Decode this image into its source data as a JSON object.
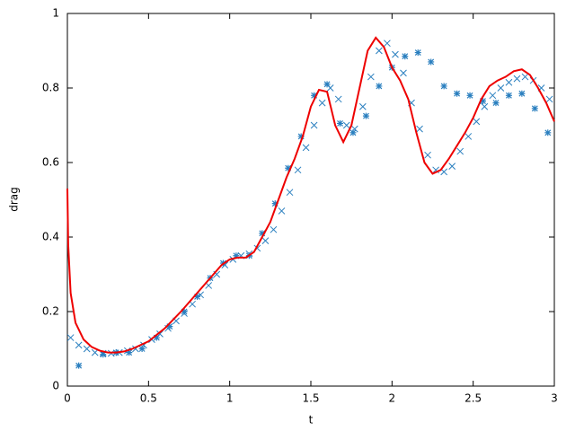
{
  "chart_data": {
    "type": "line",
    "xlabel": "t",
    "ylabel": "drag",
    "xlim": [
      0,
      3
    ],
    "ylim": [
      0,
      1
    ],
    "xticks": [
      0,
      0.5,
      1,
      1.5,
      2,
      2.5,
      3
    ],
    "yticks": [
      0,
      0.2,
      0.4,
      0.6,
      0.8,
      1
    ],
    "series": [
      {
        "marker": "x",
        "color": "#2a7fbf",
        "x": [
          0.02,
          0.07,
          0.12,
          0.17,
          0.22,
          0.27,
          0.32,
          0.37,
          0.42,
          0.47,
          0.52,
          0.57,
          0.62,
          0.67,
          0.72,
          0.77,
          0.82,
          0.87,
          0.92,
          0.97,
          1.02,
          1.07,
          1.12,
          1.17,
          1.22,
          1.27,
          1.32,
          1.37,
          1.42,
          1.47,
          1.52,
          1.57,
          1.62,
          1.67,
          1.72,
          1.77,
          1.82,
          1.87,
          1.92,
          1.97,
          2.02,
          2.07,
          2.12,
          2.17,
          2.22,
          2.27,
          2.32,
          2.37,
          2.42,
          2.47,
          2.52,
          2.57,
          2.62,
          2.67,
          2.72,
          2.77,
          2.82,
          2.87,
          2.92,
          2.97
        ],
        "values": [
          0.13,
          0.11,
          0.1,
          0.09,
          0.088,
          0.088,
          0.09,
          0.095,
          0.1,
          0.11,
          0.125,
          0.14,
          0.155,
          0.175,
          0.195,
          0.22,
          0.245,
          0.27,
          0.3,
          0.325,
          0.34,
          0.35,
          0.355,
          0.37,
          0.39,
          0.42,
          0.47,
          0.52,
          0.58,
          0.64,
          0.7,
          0.76,
          0.8,
          0.77,
          0.7,
          0.69,
          0.75,
          0.83,
          0.9,
          0.92,
          0.89,
          0.84,
          0.76,
          0.69,
          0.62,
          0.58,
          0.575,
          0.59,
          0.63,
          0.67,
          0.71,
          0.75,
          0.78,
          0.8,
          0.815,
          0.825,
          0.83,
          0.82,
          0.8,
          0.77
        ]
      },
      {
        "marker": "star",
        "color": "#2a7fbf",
        "x": [
          0.07,
          0.22,
          0.3,
          0.38,
          0.46,
          0.55,
          0.63,
          0.72,
          0.8,
          0.88,
          0.96,
          1.04,
          1.12,
          1.2,
          1.28,
          1.36,
          1.44,
          1.52,
          1.6,
          1.68,
          1.76,
          1.84,
          1.92,
          2.0,
          2.08,
          2.16,
          2.24,
          2.32,
          2.4,
          2.48,
          2.56,
          2.64,
          2.72,
          2.8,
          2.88,
          2.96
        ],
        "values": [
          0.055,
          0.085,
          0.09,
          0.09,
          0.1,
          0.13,
          0.16,
          0.2,
          0.24,
          0.29,
          0.33,
          0.35,
          0.35,
          0.41,
          0.49,
          0.585,
          0.67,
          0.78,
          0.81,
          0.705,
          0.68,
          0.725,
          0.805,
          0.855,
          0.885,
          0.895,
          0.87,
          0.805,
          0.785,
          0.78,
          0.765,
          0.76,
          0.78,
          0.785,
          0.745,
          0.68
        ]
      },
      {
        "marker": "line",
        "color": "#ee0000",
        "x": [
          0,
          0.005,
          0.02,
          0.05,
          0.1,
          0.15,
          0.2,
          0.25,
          0.3,
          0.35,
          0.4,
          0.5,
          0.6,
          0.7,
          0.8,
          0.9,
          0.95,
          1.0,
          1.05,
          1.1,
          1.15,
          1.2,
          1.25,
          1.3,
          1.35,
          1.4,
          1.45,
          1.5,
          1.55,
          1.6,
          1.65,
          1.7,
          1.75,
          1.8,
          1.85,
          1.9,
          1.95,
          2.0,
          2.05,
          2.1,
          2.15,
          2.2,
          2.25,
          2.3,
          2.35,
          2.4,
          2.45,
          2.5,
          2.55,
          2.6,
          2.65,
          2.7,
          2.75,
          2.8,
          2.85,
          2.9,
          2.95,
          3.0
        ],
        "values": [
          0.53,
          0.38,
          0.25,
          0.17,
          0.125,
          0.105,
          0.095,
          0.09,
          0.09,
          0.093,
          0.1,
          0.12,
          0.155,
          0.2,
          0.25,
          0.3,
          0.325,
          0.34,
          0.345,
          0.345,
          0.36,
          0.4,
          0.44,
          0.5,
          0.56,
          0.61,
          0.67,
          0.75,
          0.795,
          0.79,
          0.7,
          0.655,
          0.7,
          0.8,
          0.9,
          0.935,
          0.91,
          0.855,
          0.82,
          0.77,
          0.68,
          0.6,
          0.57,
          0.58,
          0.61,
          0.645,
          0.68,
          0.72,
          0.77,
          0.805,
          0.82,
          0.83,
          0.845,
          0.85,
          0.835,
          0.8,
          0.76,
          0.71
        ]
      }
    ]
  }
}
